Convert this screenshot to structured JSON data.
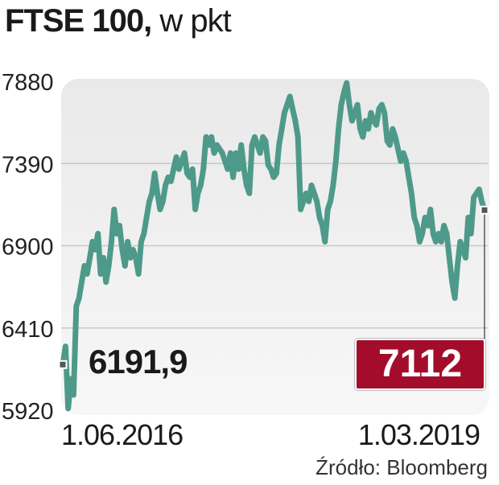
{
  "title": {
    "main": "FTSE 100,",
    "unit": " w pkt"
  },
  "chart_data": {
    "type": "line",
    "title": "FTSE 100, w pkt",
    "xlabel": "",
    "ylabel": "",
    "ylim": [
      5920,
      7880
    ],
    "yticks": [
      "7880",
      "7390",
      "6900",
      "6410",
      "5920"
    ],
    "ytick_values": [
      7880,
      7390,
      6900,
      6410,
      5920
    ],
    "x_labels": {
      "start": "1.06.2016",
      "end": "1.03.2019"
    },
    "start_value_label": "6191,9",
    "end_value_label": "7112",
    "grid": true,
    "colors": {
      "line": "#4e9a8a",
      "end_box": "#a30d2b",
      "marker": "#555555"
    },
    "series": [
      {
        "name": "FTSE 100",
        "values": [
          6192,
          6300,
          5930,
          6107,
          6011,
          6540,
          6588,
          6684,
          6780,
          6732,
          6828,
          6924,
          6876,
          6972,
          6732,
          6828,
          6684,
          6780,
          6924,
          7116,
          6972,
          7020,
          6876,
          6780,
          6924,
          6828,
          6876,
          6828,
          6732,
          6924,
          6972,
          7068,
          7164,
          7212,
          7332,
          7212,
          7116,
          7164,
          7260,
          7308,
          7284,
          7356,
          7428,
          7356,
          7404,
          7452,
          7332,
          7308,
          7356,
          7116,
          7212,
          7260,
          7356,
          7548,
          7500,
          7548,
          7452,
          7500,
          7476,
          7452,
          7404,
          7356,
          7452,
          7308,
          7452,
          7356,
          7500,
          7356,
          7260,
          7212,
          7500,
          7548,
          7500,
          7452,
          7548,
          7524,
          7380,
          7356,
          7308,
          7332,
          7500,
          7596,
          7692,
          7740,
          7789,
          7716,
          7644,
          7548,
          7116,
          7164,
          7212,
          7164,
          7260,
          7212,
          7164,
          7068,
          7020,
          6924,
          7116,
          7164,
          7260,
          7404,
          7596,
          7740,
          7813,
          7870,
          7740,
          7644,
          7692,
          7740,
          7596,
          7548,
          7644,
          7596,
          7692,
          7644,
          7620,
          7716,
          7740,
          7692,
          7524,
          7500,
          7596,
          7548,
          7476,
          7404,
          7452,
          7404,
          7308,
          7212,
          7068,
          7020,
          6924,
          6972,
          7068,
          7020,
          7116,
          6972,
          6924,
          6972,
          6924,
          7020,
          6972,
          6828,
          6684,
          6588,
          6780,
          6924,
          6876,
          6828,
          7068,
          6972,
          7188,
          7212,
          7236,
          7164,
          7112
        ]
      }
    ]
  },
  "source": "Źródło: Bloomberg"
}
